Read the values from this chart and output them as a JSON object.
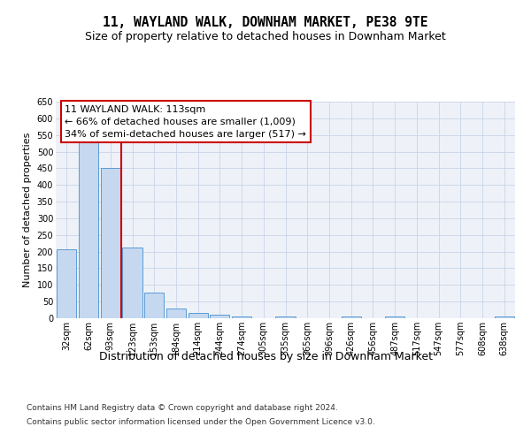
{
  "title": "11, WAYLAND WALK, DOWNHAM MARKET, PE38 9TE",
  "subtitle": "Size of property relative to detached houses in Downham Market",
  "xlabel": "Distribution of detached houses by size in Downham Market",
  "ylabel": "Number of detached properties",
  "categories": [
    "32sqm",
    "62sqm",
    "93sqm",
    "123sqm",
    "153sqm",
    "184sqm",
    "214sqm",
    "244sqm",
    "274sqm",
    "305sqm",
    "335sqm",
    "365sqm",
    "396sqm",
    "426sqm",
    "456sqm",
    "487sqm",
    "517sqm",
    "547sqm",
    "577sqm",
    "608sqm",
    "638sqm"
  ],
  "values": [
    207,
    530,
    450,
    212,
    77,
    28,
    15,
    10,
    5,
    0,
    5,
    0,
    0,
    5,
    0,
    5,
    0,
    0,
    0,
    0,
    5
  ],
  "bar_color": "#c5d8f0",
  "bar_edge_color": "#5b9bd5",
  "red_line_x": 2.5,
  "annotation_line1": "11 WAYLAND WALK: 113sqm",
  "annotation_line2": "← 66% of detached houses are smaller (1,009)",
  "annotation_line3": "34% of semi-detached houses are larger (517) →",
  "annotation_box_color": "#ffffff",
  "annotation_box_edge": "#cc0000",
  "ylim": [
    0,
    650
  ],
  "yticks": [
    0,
    50,
    100,
    150,
    200,
    250,
    300,
    350,
    400,
    450,
    500,
    550,
    600,
    650
  ],
  "grid_color": "#c8d4e8",
  "background_color": "#eef2f8",
  "footer_line1": "Contains HM Land Registry data © Crown copyright and database right 2024.",
  "footer_line2": "Contains public sector information licensed under the Open Government Licence v3.0.",
  "title_fontsize": 10.5,
  "subtitle_fontsize": 9,
  "tick_fontsize": 7,
  "ylabel_fontsize": 8,
  "xlabel_fontsize": 9,
  "annotation_fontsize": 8,
  "footer_fontsize": 6.5
}
